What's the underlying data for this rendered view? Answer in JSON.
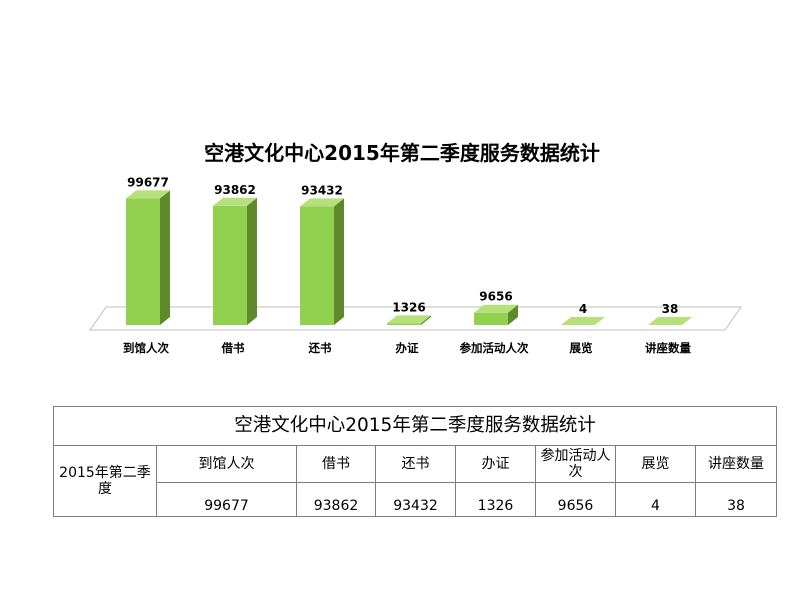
{
  "chart_data": {
    "type": "bar",
    "title": "空港文化中心2015年第二季度服务数据统计",
    "categories": [
      "到馆人次",
      "借书",
      "还书",
      "办证",
      "参加活动人次",
      "展览",
      "讲座数量"
    ],
    "values": [
      99677,
      93862,
      93432,
      1326,
      9656,
      4,
      38
    ],
    "data_labels": [
      "99677",
      "93862",
      "93432",
      "1326",
      "9656",
      "4",
      "38"
    ],
    "ylim": [
      0,
      100000
    ],
    "bar_color": "#92d050",
    "bar_side_color": "#5f8a2b",
    "bar_top_color": "#b5e07c",
    "floor_outline_color": "#bfbfbf",
    "grid": false,
    "legend": "none",
    "style": "3d-column"
  },
  "table": {
    "title": "空港文化中心2015年第二季度服务数据统计",
    "row_header": "2015年第二季度",
    "headers": [
      "到馆人次",
      "借书",
      "还书",
      "办证",
      "参加活动人次",
      "展览",
      "讲座数量"
    ],
    "values": [
      "99677",
      "93862",
      "93432",
      "1326",
      "9656",
      "4",
      "38"
    ]
  }
}
